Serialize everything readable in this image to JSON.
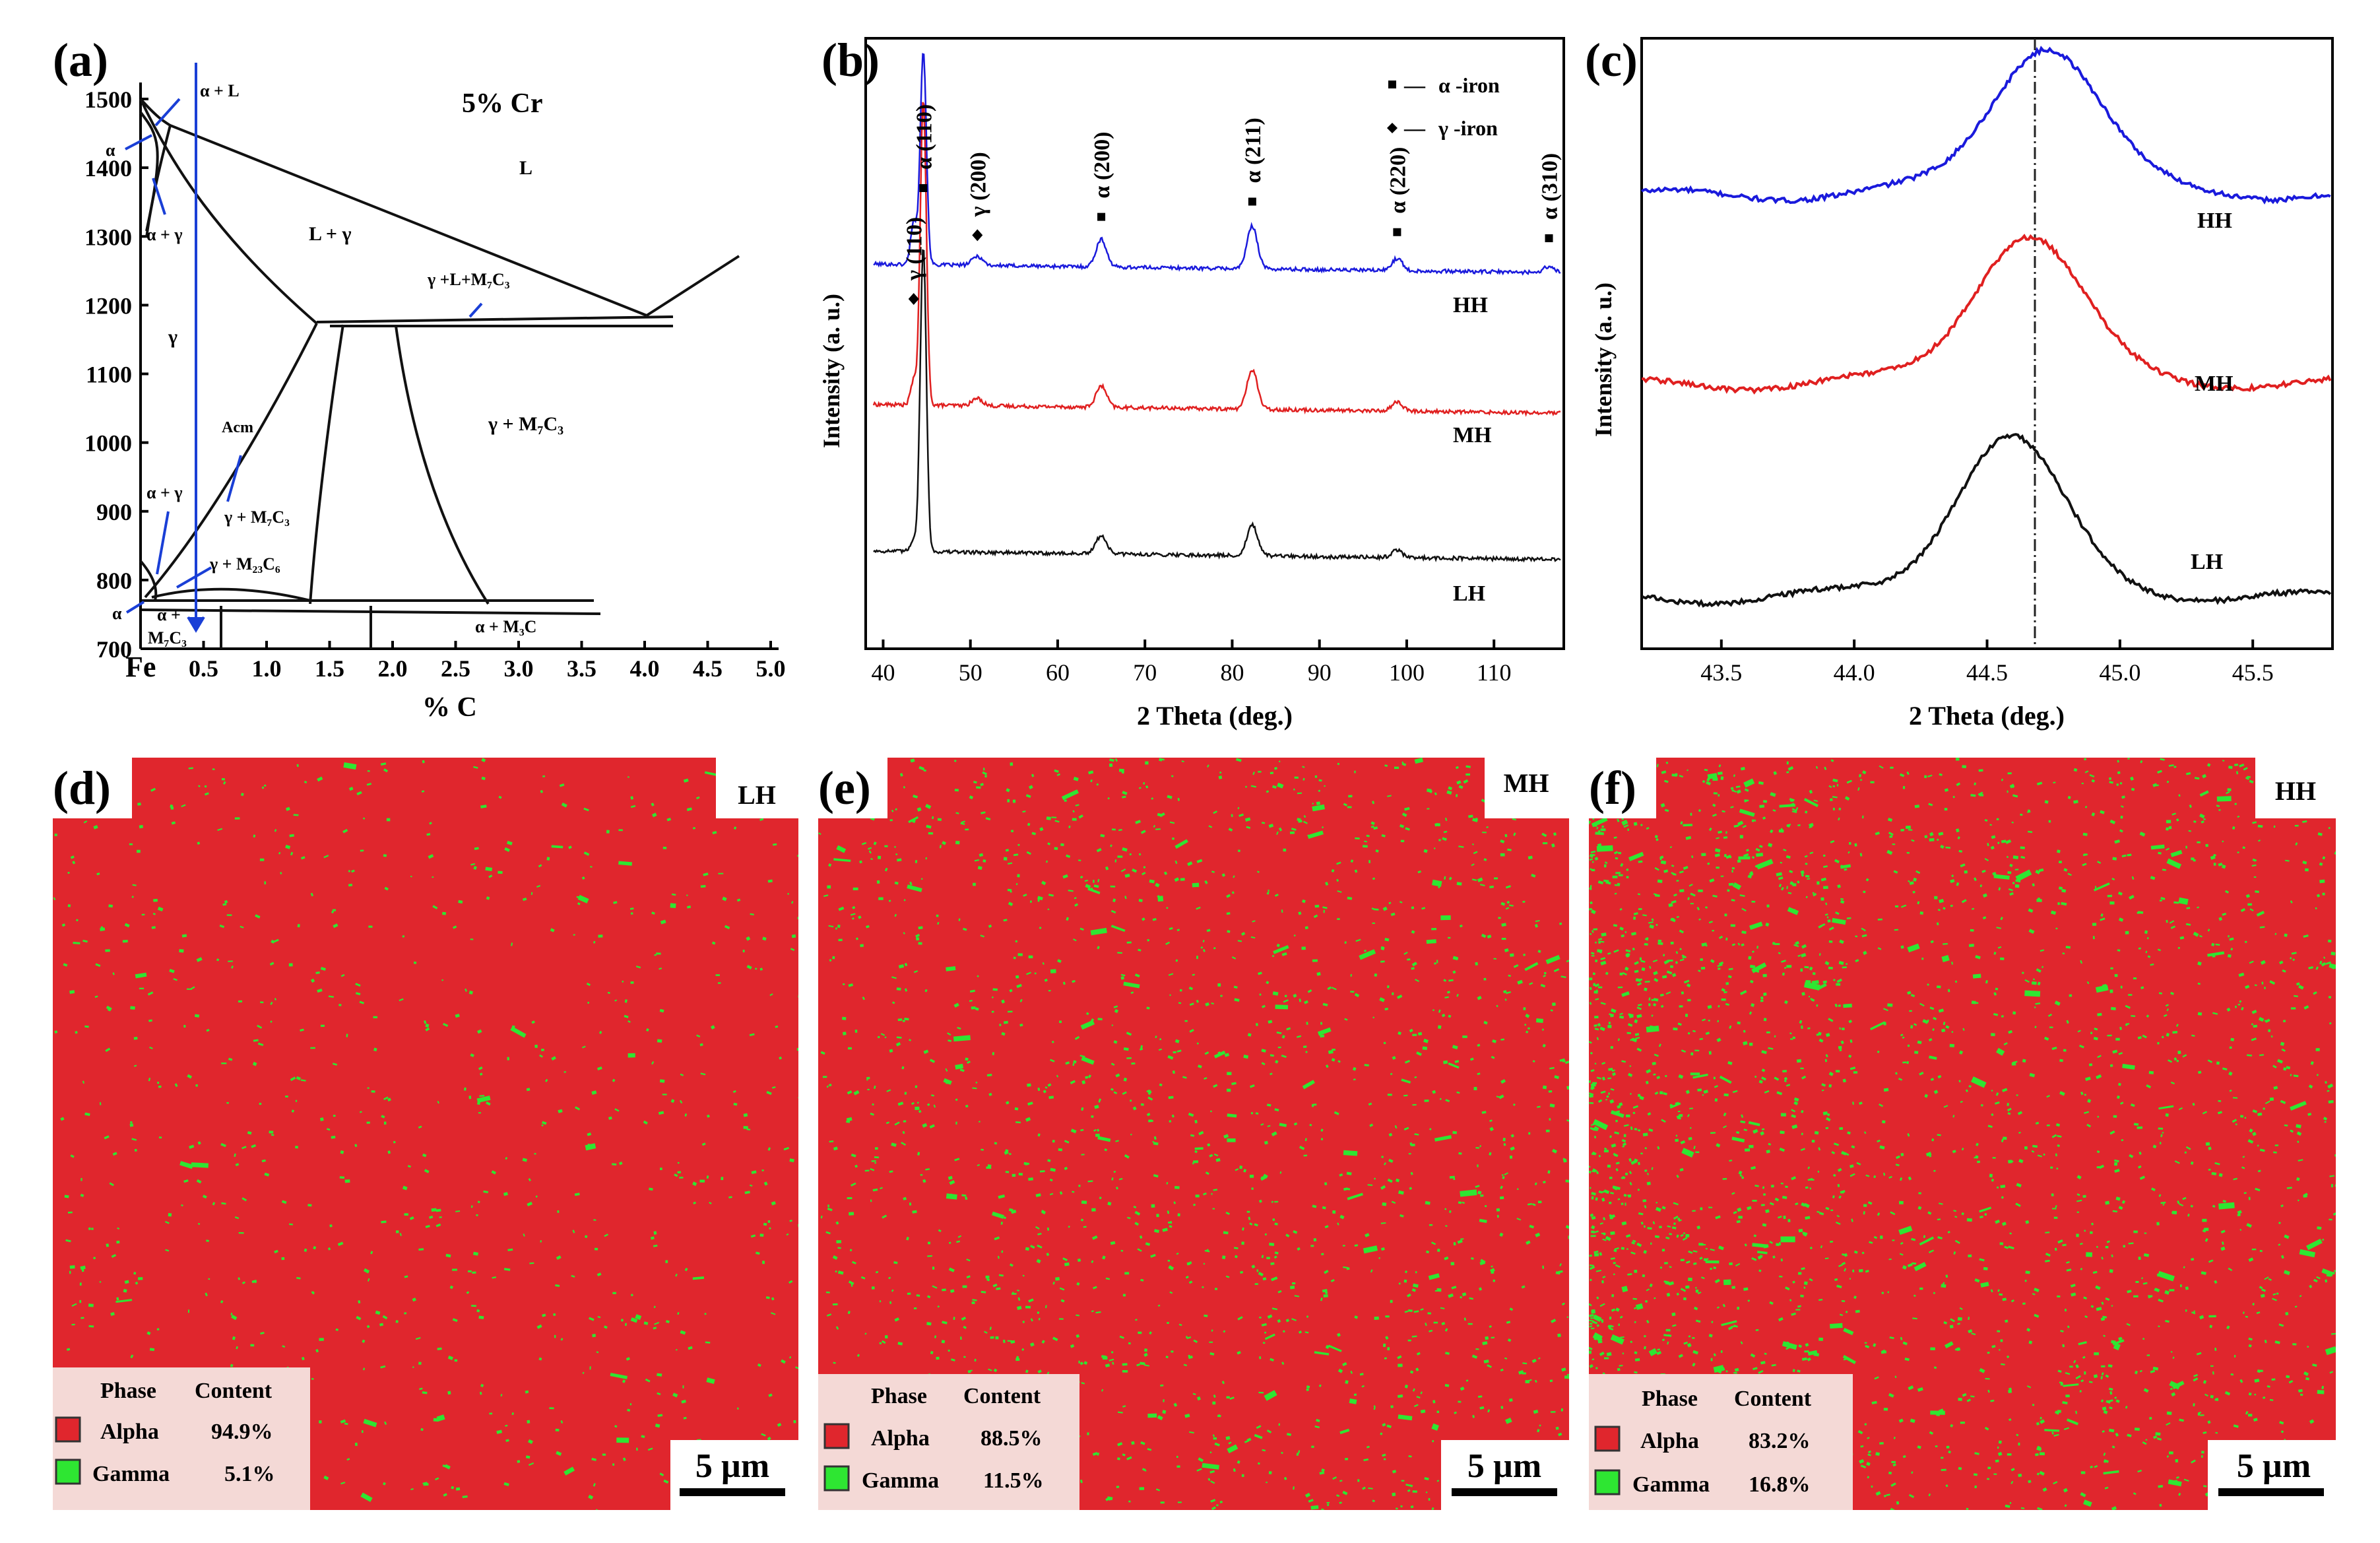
{
  "panel_a": {
    "letter": "(a)",
    "title": "5%  Cr",
    "xlabel": "% C",
    "x_origin_label": "Fe",
    "xticks": [
      "0.5",
      "1.0",
      "1.5",
      "2.0",
      "2.5",
      "3.0",
      "3.5",
      "4.0",
      "4.5",
      "5.0"
    ],
    "yticks": [
      "700",
      "800",
      "900",
      "1000",
      "1100",
      "1200",
      "1300",
      "1400",
      "1500"
    ],
    "regions": {
      "L": "L",
      "a_L": "α + L",
      "alpha_top": "α",
      "a_g_top": "α + γ",
      "L_g": "L + γ",
      "g_L_M7C3": "γ +L+M₇C₃",
      "gamma": "γ",
      "Acm": "Acm",
      "g_M7C3_right": "γ + M₇C₃",
      "a_g_low": "α + γ",
      "g_M7C3_mid": "γ + M₇C₃",
      "g_M23C6": "γ + M₂₃C₆",
      "alpha_low": "α",
      "a_M7C3_1": "α +",
      "a_M7C3_2": "M₇C₃",
      "a_M3C": "α + M₃C"
    }
  },
  "chart_data": [
    {
      "type": "line",
      "panel": "b",
      "title": "",
      "xlabel": "2 Theta (deg.)",
      "ylabel": "Intensity (a. u.)",
      "xlim": [
        38,
        118
      ],
      "xticks": [
        40,
        50,
        60,
        70,
        80,
        90,
        100,
        110
      ],
      "series": [
        {
          "name": "HH",
          "color": "#1a1adc",
          "baseline": 0.63,
          "peaks": [
            [
              43.5,
              0.07
            ],
            [
              44.6,
              0.35
            ],
            [
              50.8,
              0.015
            ],
            [
              65.0,
              0.045
            ],
            [
              82.3,
              0.07
            ],
            [
              98.9,
              0.02
            ],
            [
              116.3,
              0.01
            ]
          ]
        },
        {
          "name": "MH",
          "color": "#e02020",
          "baseline": 0.4,
          "peaks": [
            [
              43.5,
              0.04
            ],
            [
              44.6,
              0.5
            ],
            [
              50.8,
              0.012
            ],
            [
              65.0,
              0.035
            ],
            [
              82.3,
              0.065
            ],
            [
              98.9,
              0.015
            ]
          ]
        },
        {
          "name": "LH",
          "color": "#111111",
          "baseline": 0.16,
          "peaks": [
            [
              43.5,
              0.02
            ],
            [
              44.6,
              0.5
            ],
            [
              65.0,
              0.03
            ],
            [
              82.3,
              0.05
            ],
            [
              98.9,
              0.012
            ]
          ]
        }
      ],
      "peak_labels": [
        {
          "label": "γ (110)",
          "x": 43.5,
          "marker": "diamond"
        },
        {
          "label": "α (110)",
          "x": 44.6,
          "marker": "square"
        },
        {
          "label": "γ (200)",
          "x": 50.8,
          "marker": "diamond"
        },
        {
          "label": "α (200)",
          "x": 65.0,
          "marker": "square"
        },
        {
          "label": "α (211)",
          "x": 82.3,
          "marker": "square"
        },
        {
          "label": "α (220)",
          "x": 98.9,
          "marker": "square"
        },
        {
          "label": "α (310)",
          "x": 116.3,
          "marker": "square"
        }
      ],
      "legend": [
        {
          "label": "α -iron",
          "marker": "square"
        },
        {
          "label": "γ -iron",
          "marker": "diamond"
        }
      ],
      "legend_prefix": "—",
      "legend_position": "top-right"
    },
    {
      "type": "line",
      "panel": "c",
      "title": "",
      "xlabel": "2 Theta (deg.)",
      "ylabel": "Intensity (a. u.)",
      "xlim": [
        43.2,
        45.8
      ],
      "xticks": [
        "43.5",
        "44.0",
        "44.5",
        "45.0",
        "45.5"
      ],
      "reference_line_x": 44.68,
      "series": [
        {
          "name": "HH",
          "color": "#1a1adc",
          "baseline": 0.74,
          "peak_x": 44.72,
          "peak_height": 0.25
        },
        {
          "name": "MH",
          "color": "#e02020",
          "baseline": 0.43,
          "peak_x": 44.65,
          "peak_height": 0.25
        },
        {
          "name": "LH",
          "color": "#111111",
          "baseline": 0.08,
          "peak_x": 44.58,
          "peak_height": 0.27
        }
      ]
    },
    {
      "type": "table",
      "panel": "d",
      "map_label": "LH",
      "header": [
        "Phase",
        "Content"
      ],
      "rows": [
        {
          "phase": "Alpha",
          "content": "94.9%",
          "color": "#e0262d"
        },
        {
          "phase": "Gamma",
          "content": "5.1%",
          "color": "#2ee632"
        }
      ],
      "scale_bar": "5 µm",
      "gamma_fraction": 0.051
    },
    {
      "type": "table",
      "panel": "e",
      "map_label": "MH",
      "header": [
        "Phase",
        "Content"
      ],
      "rows": [
        {
          "phase": "Alpha",
          "content": "88.5%",
          "color": "#e0262d"
        },
        {
          "phase": "Gamma",
          "content": "11.5%",
          "color": "#2ee632"
        }
      ],
      "scale_bar": "5 µm",
      "gamma_fraction": 0.115
    },
    {
      "type": "table",
      "panel": "f",
      "map_label": "HH",
      "header": [
        "Phase",
        "Content"
      ],
      "rows": [
        {
          "phase": "Alpha",
          "content": "83.2%",
          "color": "#e0262d"
        },
        {
          "phase": "Gamma",
          "content": "16.8%",
          "color": "#2ee632"
        }
      ],
      "scale_bar": "5 µm",
      "gamma_fraction": 0.168
    }
  ],
  "panel_letters": {
    "b": "(b)",
    "c": "(c)",
    "d": "(d)",
    "e": "(e)",
    "f": "(f)"
  },
  "colors": {
    "alpha": "#e0262d",
    "gamma": "#2ee632",
    "hh": "#1a1adc",
    "mh": "#e02020",
    "lh": "#111111",
    "guide": "#1a3fd6"
  }
}
